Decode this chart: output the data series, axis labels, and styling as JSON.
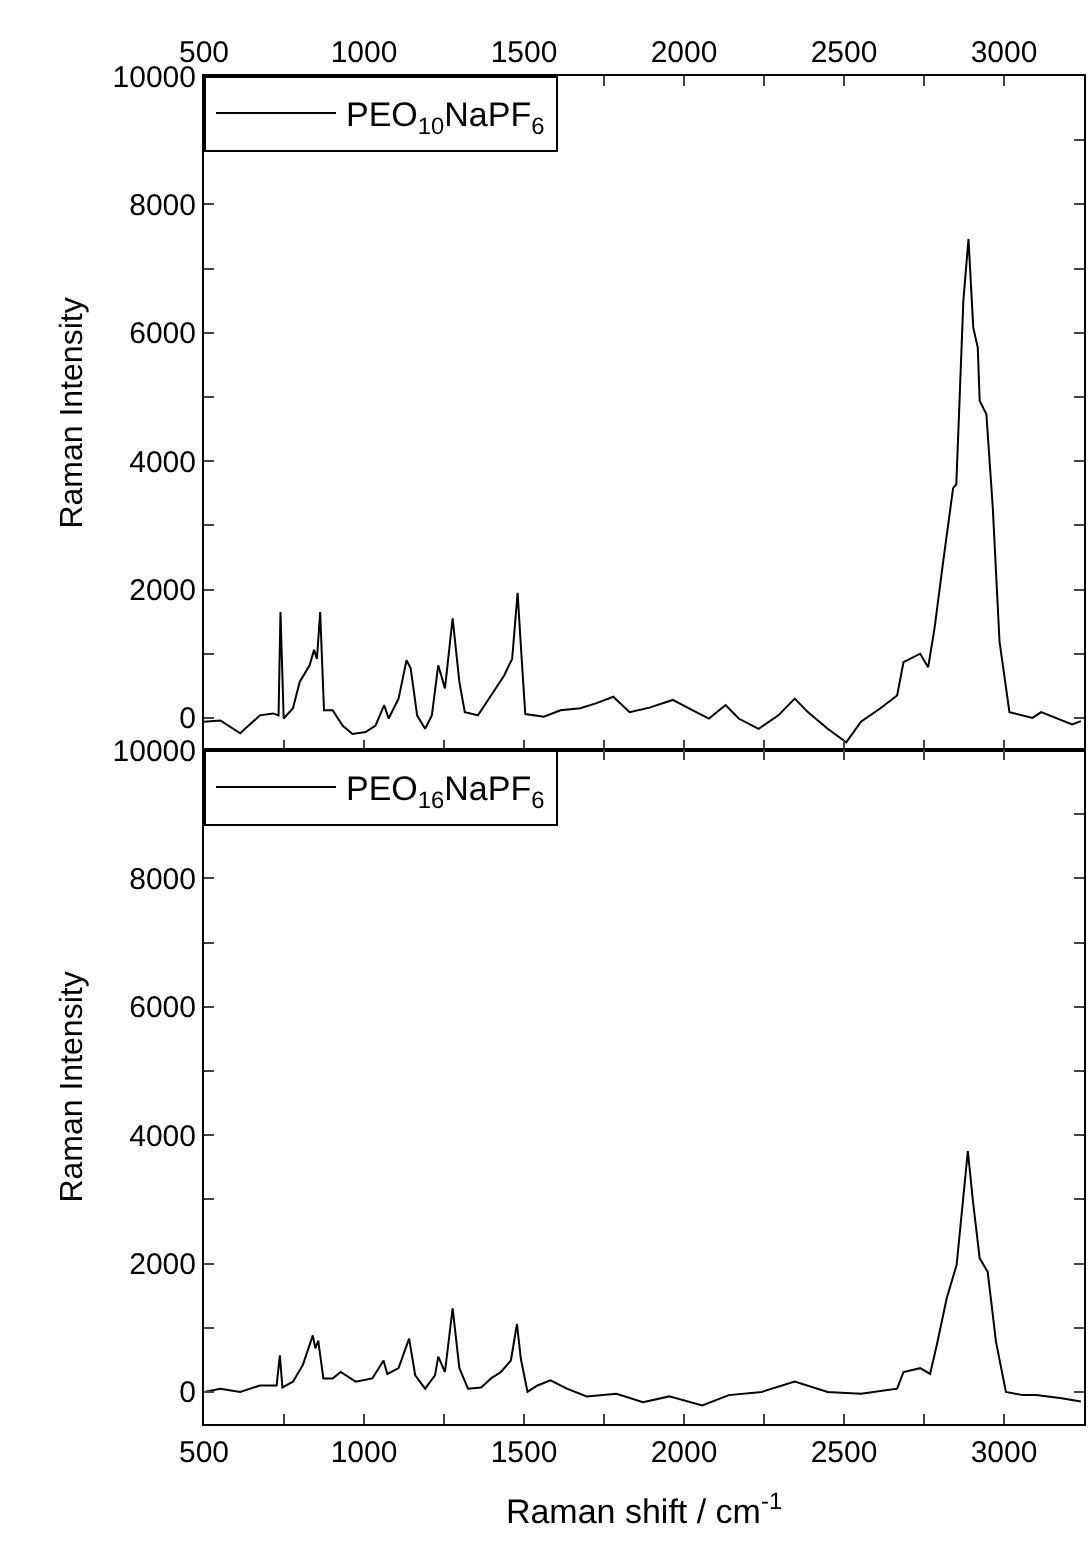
{
  "chart_data": [
    {
      "type": "line",
      "ylabel": "Raman Intensity",
      "legend": "top left",
      "xlim": [
        500,
        3250
      ],
      "xticks": [
        500,
        {
          "value": 750,
          "label": null
        },
        1000,
        {
          "value": 1250,
          "label": null
        },
        1500,
        {
          "value": 1750,
          "label": null
        },
        2000,
        {
          "value": 2250,
          "label": null
        },
        2500,
        {
          "value": 2750,
          "label": null
        },
        3000
      ],
      "ylim": [
        -500,
        10000
      ],
      "yticks": [
        0,
        {
          "value": 1000,
          "label": null
        },
        2000,
        {
          "value": 3000,
          "label": null
        },
        4000,
        {
          "value": 5000,
          "label": null
        },
        6000,
        {
          "value": 7000,
          "label": null
        },
        8000,
        {
          "value": 9000,
          "label": null
        },
        10000
      ],
      "series": [
        {
          "name": "PEO$_{10}$NaPF$_{6}$",
          "color": "#000000",
          "x": [
            500,
            551,
            613,
            675,
            716,
            733,
            739,
            749,
            778,
            799,
            830,
            844,
            853,
            863,
            875,
            902,
            933,
            964,
            1005,
            1036,
            1063,
            1077,
            1108,
            1133,
            1146,
            1166,
            1191,
            1212,
            1232,
            1253,
            1277,
            1298,
            1315,
            1356,
            1397,
            1438,
            1463,
            1480,
            1492,
            1504,
            1562,
            1614,
            1676,
            1727,
            1779,
            1830,
            1892,
            1965,
            2026,
            2078,
            2130,
            2171,
            2233,
            2295,
            2346,
            2387,
            2449,
            2507,
            2553,
            2614,
            2666,
            2686,
            2738,
            2763,
            2783,
            2810,
            2841,
            2851,
            2873,
            2889,
            2904,
            2918,
            2924,
            2945,
            2965,
            2986,
            3017,
            3089,
            3116,
            3213,
            3240
          ],
          "values": [
            -60,
            -40,
            -240,
            40,
            70,
            40,
            1650,
            -10,
            150,
            560,
            820,
            1060,
            920,
            1650,
            120,
            120,
            -120,
            -250,
            -220,
            -120,
            200,
            -10,
            300,
            900,
            770,
            40,
            -170,
            40,
            820,
            460,
            1550,
            560,
            90,
            40,
            350,
            660,
            920,
            1950,
            980,
            60,
            20,
            120,
            150,
            230,
            330,
            90,
            160,
            280,
            120,
            -10,
            200,
            -10,
            -170,
            40,
            300,
            90,
            -170,
            -380,
            -60,
            150,
            350,
            870,
            1000,
            790,
            1400,
            2440,
            3580,
            3640,
            6500,
            7460,
            6080,
            5770,
            4940,
            4730,
            3270,
            1190,
            90,
            0,
            90,
            -100,
            -50
          ]
        }
      ]
    },
    {
      "type": "line",
      "ylabel": "Raman Intensity",
      "xlabel": "Raman shift / cm$^{-1}$",
      "legend": "top left",
      "xlim": [
        500,
        3250
      ],
      "xticks": [
        500,
        {
          "value": 750,
          "label": null
        },
        1000,
        {
          "value": 1250,
          "label": null
        },
        1500,
        {
          "value": 1750,
          "label": null
        },
        2000,
        {
          "value": 2250,
          "label": null
        },
        2500,
        {
          "value": 2750,
          "label": null
        },
        3000
      ],
      "ylim": [
        -500,
        10000
      ],
      "yticks": [
        0,
        {
          "value": 1000,
          "label": null
        },
        2000,
        {
          "value": 3000,
          "label": null
        },
        4000,
        {
          "value": 5000,
          "label": null
        },
        6000,
        {
          "value": 7000,
          "label": null
        },
        8000,
        {
          "value": 9000,
          "label": null
        },
        10000
      ],
      "series": [
        {
          "name": "PEO$_{16}$NaPF$_{6}$",
          "color": "#000000",
          "x": [
            500,
            551,
            613,
            675,
            727,
            737,
            745,
            778,
            809,
            840,
            848,
            857,
            873,
            902,
            927,
            974,
            1026,
            1061,
            1073,
            1108,
            1141,
            1160,
            1191,
            1222,
            1232,
            1253,
            1277,
            1298,
            1325,
            1366,
            1397,
            1428,
            1459,
            1478,
            1490,
            1511,
            1542,
            1583,
            1634,
            1696,
            1789,
            1872,
            1954,
            2057,
            2140,
            2243,
            2346,
            2449,
            2553,
            2666,
            2686,
            2738,
            2769,
            2790,
            2821,
            2852,
            2887,
            2903,
            2924,
            2949,
            2975,
            3006,
            3058,
            3100,
            3180,
            3240
          ],
          "values": [
            0,
            50,
            0,
            100,
            100,
            570,
            70,
            160,
            420,
            880,
            680,
            800,
            210,
            210,
            310,
            160,
            210,
            490,
            280,
            370,
            830,
            260,
            50,
            260,
            550,
            310,
            1300,
            370,
            50,
            70,
            210,
            310,
            490,
            1060,
            520,
            0,
            100,
            180,
            50,
            -70,
            -30,
            -160,
            -70,
            -210,
            -50,
            0,
            160,
            0,
            -30,
            50,
            310,
            370,
            280,
            730,
            1460,
            1980,
            3750,
            2970,
            2080,
            1870,
            780,
            0,
            -50,
            -50,
            -100,
            -150
          ]
        }
      ]
    }
  ]
}
